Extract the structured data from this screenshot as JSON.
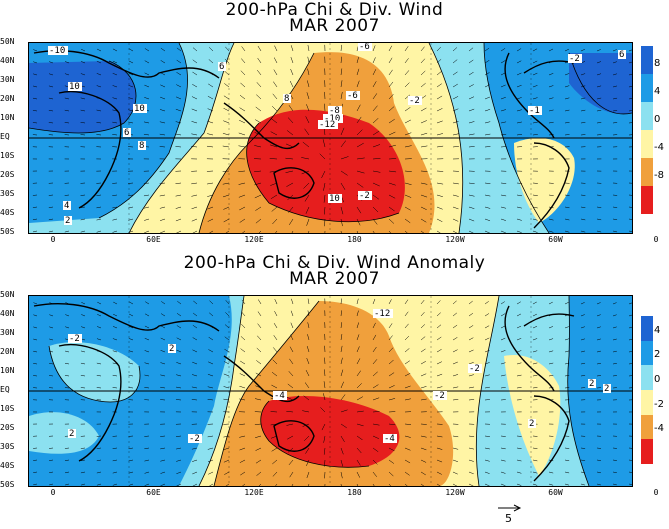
{
  "maps": [
    {
      "title_line1": "200-hPa Chi & Div. Wind",
      "title_line2": "MAR 2007",
      "lat_labels": [
        "50N",
        "40N",
        "30N",
        "20N",
        "10N",
        "EQ",
        "10S",
        "20S",
        "30S",
        "40S",
        "50S"
      ],
      "lon_labels": [
        "0",
        "60E",
        "120E",
        "180",
        "120W",
        "60W",
        "0"
      ],
      "contour_labels": [
        "-6",
        "-6",
        "-8",
        "-10",
        "-12",
        "-2",
        "6",
        "8",
        "10",
        "10",
        "8",
        "6",
        "4",
        "2",
        "-2",
        "-1",
        "-2",
        "6",
        "10",
        "-10"
      ],
      "colorbar_labels": [
        "8",
        "4",
        "0",
        "-4",
        "-8"
      ],
      "colorbar_colors": [
        "#1e64d2",
        "#1e9be6",
        "#8ce1f0",
        "#fff5a5",
        "#f0a03c",
        "#e61e1e"
      ]
    },
    {
      "title_line1": "200-hPa Chi & Div. Wind Anomaly",
      "title_line2": "MAR 2007",
      "lat_labels": [
        "50N",
        "40N",
        "30N",
        "20N",
        "10N",
        "EQ",
        "10S",
        "20S",
        "30S",
        "40S",
        "50S"
      ],
      "lon_labels": [
        "0",
        "60E",
        "120E",
        "180",
        "120W",
        "60W",
        "0"
      ],
      "contour_labels": [
        "-12",
        "-2",
        "2",
        "2",
        "-2",
        "-4",
        "-4",
        "-2",
        "2",
        "2",
        "-2",
        "2"
      ],
      "colorbar_labels": [
        "4",
        "2",
        "0",
        "-2",
        "-4"
      ],
      "colorbar_colors": [
        "#1e64d2",
        "#1e9be6",
        "#8ce1f0",
        "#fff5a5",
        "#f0a03c",
        "#e61e1e"
      ]
    }
  ],
  "reference_vector_label": "5"
}
